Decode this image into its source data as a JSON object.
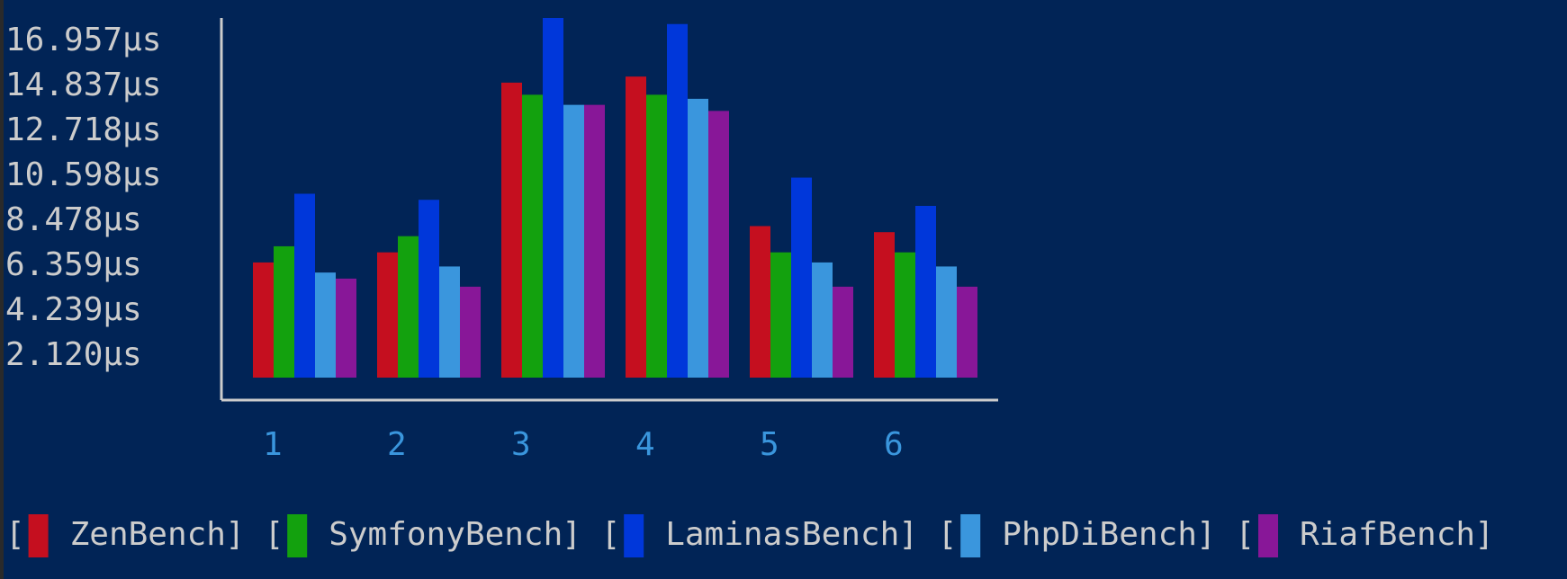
{
  "chart_data": {
    "type": "bar",
    "categories": [
      "1",
      "2",
      "3",
      "4",
      "5",
      "6"
    ],
    "y_ticks": [
      "16.957μs",
      "14.837μs",
      "12.718μs",
      "10.598μs",
      "8.478μs",
      "6.359μs",
      "4.239μs",
      "2.120μs"
    ],
    "ylim": [
      0,
      17.8
    ],
    "series": [
      {
        "name": "ZenBench",
        "color": "#c50f1f",
        "values": [
          5.7,
          6.2,
          14.6,
          14.9,
          7.5,
          7.2
        ]
      },
      {
        "name": "SymfonyBench",
        "color": "#13a10e",
        "values": [
          6.5,
          7.0,
          14.0,
          14.0,
          6.2,
          6.2
        ]
      },
      {
        "name": "LaminasBench",
        "color": "#0037da",
        "values": [
          9.1,
          8.8,
          17.8,
          17.5,
          9.9,
          8.5
        ]
      },
      {
        "name": "PhpDiBench",
        "color": "#3a96dd",
        "values": [
          5.2,
          5.5,
          13.5,
          13.8,
          5.7,
          5.5
        ]
      },
      {
        "name": "RiafBench",
        "color": "#881798",
        "values": [
          4.9,
          4.5,
          13.5,
          13.2,
          4.5,
          4.5
        ]
      }
    ]
  },
  "legend_brackets": {
    "open": "[",
    "close": "]"
  },
  "colors": {
    "background": "#012456",
    "text": "#cccccc",
    "category_label": "#3a96dd",
    "axis": "#cccccc"
  }
}
